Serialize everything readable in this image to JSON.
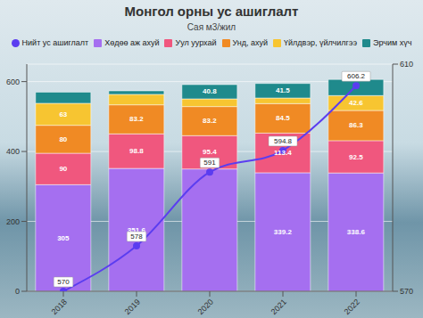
{
  "chart_data": {
    "type": "bar",
    "title": "Монгол орны ус ашиглалт",
    "subtitle": "Сая м3/жил",
    "categories": [
      "2018",
      "2019",
      "2020",
      "2021",
      "2022"
    ],
    "stacked": true,
    "ylim": [
      0,
      650
    ],
    "yticks": [
      0,
      200,
      400,
      600
    ],
    "y2lim": [
      570,
      610
    ],
    "y2ticks": [
      570,
      610
    ],
    "grid": true,
    "legend": "top",
    "series": [
      {
        "name": "Нийт ус ашиглалт",
        "type": "line",
        "axis": "y2",
        "color": "#5b3df0",
        "marker": "circle",
        "data_labels": true,
        "values": [
          570,
          578,
          591,
          594.8,
          606.2
        ]
      },
      {
        "name": "Хөдөө аж ахуй",
        "type": "bar",
        "color": "#a56ff0",
        "data_labels": true,
        "values": [
          305,
          351.6,
          350,
          339.2,
          338.6
        ],
        "value_labels": [
          "305",
          "351.6",
          null,
          "339.2",
          "338.6"
        ]
      },
      {
        "name": "Уул уурхай",
        "type": "bar",
        "color": "#f0577e",
        "data_labels": true,
        "values": [
          90,
          98.8,
          95.4,
          113.4,
          92.5
        ],
        "value_labels": [
          "90",
          "98.8",
          "95.4",
          "113.4",
          "92.5"
        ]
      },
      {
        "name": "Унд, ахуй",
        "type": "bar",
        "color": "#f08a24",
        "data_labels": true,
        "values": [
          80,
          83.2,
          83.2,
          84.5,
          86.3
        ],
        "value_labels": [
          "80",
          "83.2",
          "83.2",
          "84.5",
          "86.3"
        ]
      },
      {
        "name": "Үйлдвэр, үйлчилгээ",
        "type": "bar",
        "color": "#f7c531",
        "data_labels": true,
        "values": [
          63,
          30,
          22,
          16,
          42.6
        ],
        "value_labels": [
          "63",
          null,
          null,
          null,
          "42.6"
        ]
      },
      {
        "name": "Эрчим хүч",
        "type": "bar",
        "color": "#1f8a8c",
        "data_labels": true,
        "values": [
          32,
          10,
          40.8,
          41.5,
          46.2
        ],
        "value_labels": [
          null,
          null,
          "40.8",
          "41.5",
          null
        ]
      }
    ]
  }
}
